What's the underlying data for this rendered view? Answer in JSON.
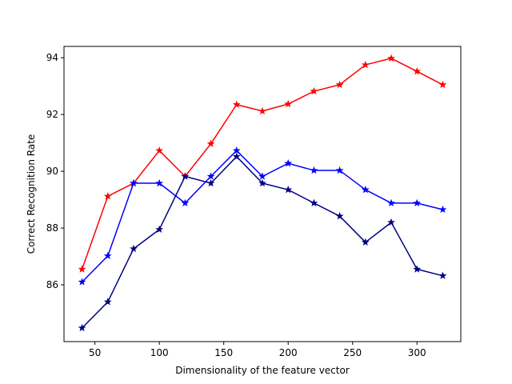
{
  "chart_data": {
    "type": "line",
    "title": "",
    "xlabel": "Dimensionality of the feature vector",
    "ylabel": "Correct Recognition Rate",
    "xlim": [
      26,
      334
    ],
    "ylim": [
      84.0,
      94.4
    ],
    "xticks": [
      50,
      100,
      150,
      200,
      250,
      300
    ],
    "yticks": [
      86,
      88,
      90,
      92,
      94
    ],
    "grid": false,
    "legend": "none",
    "x": [
      40,
      60,
      80,
      100,
      120,
      140,
      160,
      180,
      200,
      220,
      240,
      260,
      280,
      300,
      320
    ],
    "series": [
      {
        "color": "#ff0000",
        "marker": "star",
        "values": [
          86.55,
          89.12,
          89.58,
          90.73,
          89.82,
          90.97,
          92.35,
          92.12,
          92.37,
          92.82,
          93.05,
          93.75,
          93.98,
          93.52,
          93.05
        ]
      },
      {
        "color": "#0000ff",
        "marker": "star",
        "values": [
          86.1,
          87.02,
          89.58,
          89.58,
          88.88,
          89.82,
          90.73,
          89.82,
          90.28,
          90.03,
          90.03,
          89.35,
          88.88,
          88.88,
          88.65
        ]
      },
      {
        "color": "#000080",
        "marker": "star",
        "values": [
          84.48,
          85.4,
          87.27,
          87.95,
          89.82,
          89.58,
          90.52,
          89.58,
          89.35,
          88.88,
          88.42,
          87.5,
          88.2,
          86.55,
          86.32
        ]
      }
    ]
  }
}
